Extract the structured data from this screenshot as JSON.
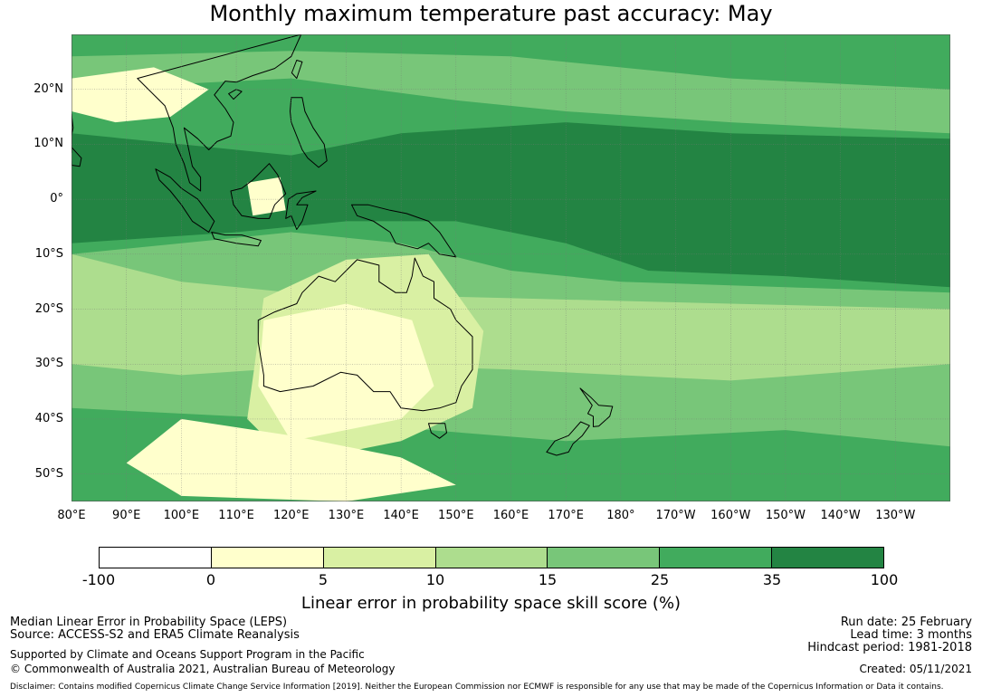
{
  "title": "Monthly maximum temperature past accuracy: May",
  "chart_data": {
    "type": "heatmap",
    "title": "Monthly maximum temperature past accuracy: May",
    "variable": "Linear error in probability space skill score (%)",
    "x_range_deg_east": [
      80,
      240
    ],
    "y_range_deg_north": [
      -55,
      30
    ],
    "lat_ticks": [
      "20°N",
      "10°N",
      "0°",
      "10°S",
      "20°S",
      "30°S",
      "40°S",
      "50°S"
    ],
    "lon_ticks": [
      "80°E",
      "90°E",
      "100°E",
      "110°E",
      "120°E",
      "130°E",
      "140°E",
      "150°E",
      "160°E",
      "170°E",
      "180°",
      "170°W",
      "160°W",
      "150°W",
      "140°W",
      "130°W"
    ],
    "colorbar": {
      "boundaries": [
        "-100",
        "0",
        "5",
        "10",
        "15",
        "25",
        "35",
        "100"
      ],
      "colors": [
        "#ffffff",
        "#ffffcc",
        "#d9f0a3",
        "#addd8e",
        "#78c679",
        "#41ab5d",
        "#238443"
      ],
      "label": "Linear error in probability space skill score (%)"
    }
  },
  "footer": {
    "left_line1": "Median Linear Error in Probability Space (LEPS)",
    "left_line2": "Source: ACCESS-S2 and ERA5 Climate Reanalysis",
    "left_line3": "Supported by Climate and Oceans Support Program in the Pacific",
    "left_line4": "© Commonwealth of Australia 2021, Australian Bureau of Meteorology",
    "run_date": "Run date: 25 February",
    "lead_time": "Lead time: 3 months",
    "hindcast": "Hindcast period: 1981-2018",
    "created": "Created: 05/11/2021",
    "disclaimer": "Disclaimer: Contains modified Copernicus Climate Change Service Information [2019]. Neither the European Commission nor ECMWF is responsible for any use that may be made of the Copernicus Information or Data it contains."
  }
}
